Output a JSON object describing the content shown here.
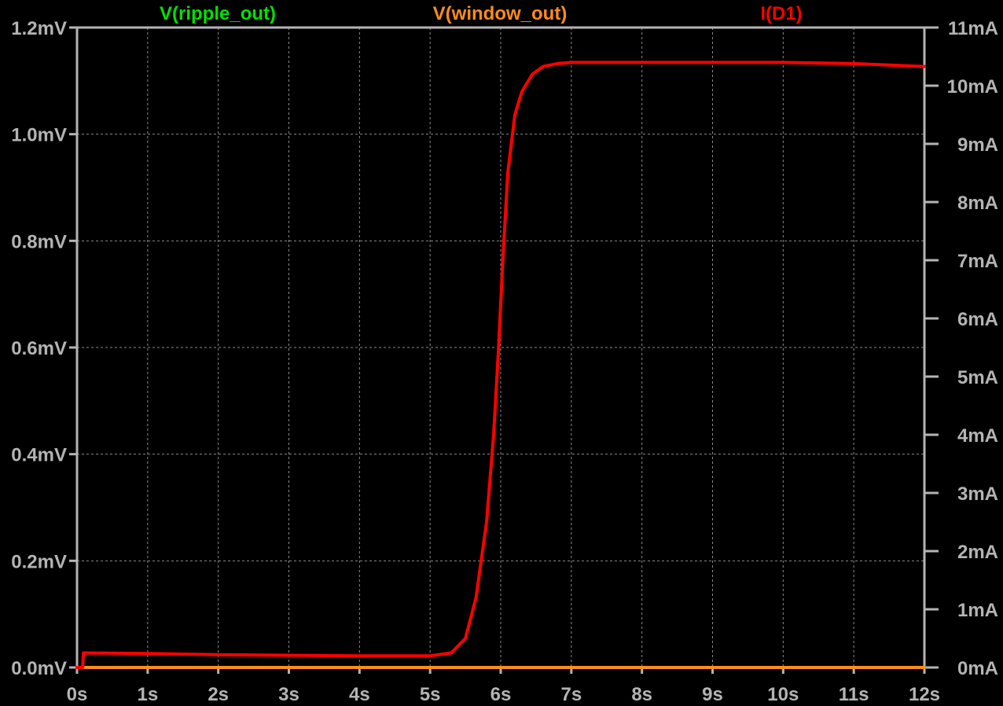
{
  "chart_data": {
    "type": "line",
    "background": "#000000",
    "axis_color": "#b4b4b4",
    "grid": true,
    "legend_placement": "top",
    "x_axis": {
      "ticks": [
        "0s",
        "1s",
        "2s",
        "3s",
        "4s",
        "5s",
        "6s",
        "7s",
        "8s",
        "9s",
        "10s",
        "11s",
        "12s"
      ],
      "range": [
        0,
        12
      ],
      "unit": "s"
    },
    "y_left": {
      "ticks": [
        "0.0mV",
        "0.2mV",
        "0.4mV",
        "0.6mV",
        "0.8mV",
        "1.0mV",
        "1.2mV"
      ],
      "range": [
        0,
        1.2
      ],
      "unit": "mV"
    },
    "y_right": {
      "ticks": [
        "0mA",
        "1mA",
        "2mA",
        "3mA",
        "4mA",
        "5mA",
        "6mA",
        "7mA",
        "8mA",
        "9mA",
        "10mA",
        "11mA"
      ],
      "range": [
        0,
        11
      ],
      "unit": "mA"
    },
    "series": [
      {
        "name": "V(ripple_out)",
        "color": "#00e000",
        "axis": "left",
        "x": [
          0,
          12
        ],
        "y": [
          0,
          0
        ]
      },
      {
        "name": "V(window_out)",
        "color": "#ff8c1a",
        "axis": "left",
        "x": [
          0,
          12
        ],
        "y": [
          0,
          0
        ]
      },
      {
        "name": "I(D1)",
        "color": "#ff0000",
        "axis": "right",
        "x": [
          0,
          0.08,
          0.09,
          1,
          2,
          3,
          4,
          5,
          5.3,
          5.5,
          5.65,
          5.8,
          5.9,
          5.97,
          6.03,
          6.1,
          6.2,
          6.3,
          6.45,
          6.6,
          6.8,
          7,
          8,
          9,
          10,
          11,
          12
        ],
        "y": [
          0,
          0,
          0.25,
          0.24,
          0.22,
          0.21,
          0.2,
          0.2,
          0.25,
          0.5,
          1.2,
          2.5,
          4,
          5.5,
          7,
          8.5,
          9.5,
          9.9,
          10.2,
          10.33,
          10.38,
          10.4,
          10.4,
          10.4,
          10.4,
          10.38,
          10.33
        ]
      }
    ]
  }
}
